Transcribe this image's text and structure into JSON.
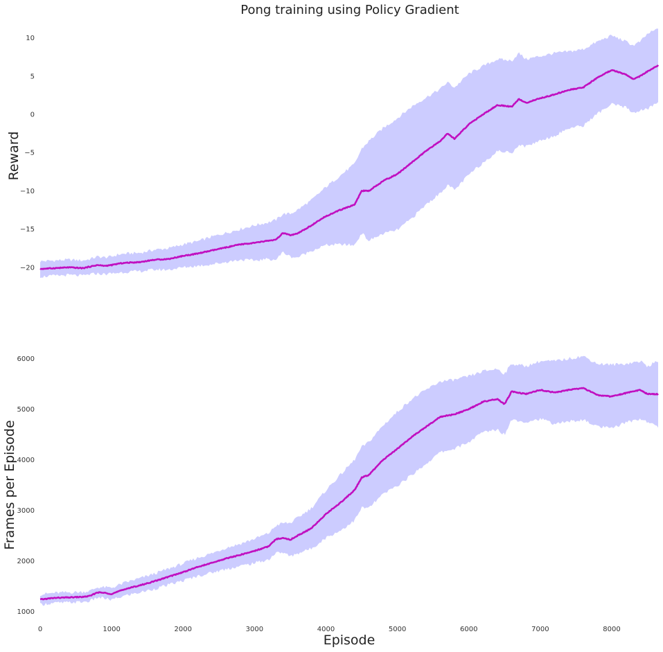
{
  "chart_data": [
    {
      "type": "line",
      "title": "Pong training using Policy Gradient",
      "ylabel": "Reward",
      "xlabel": "",
      "xlim": [
        0,
        8650
      ],
      "ylim": [
        -22,
        11.5
      ],
      "xticks": [
        0,
        1000,
        2000,
        3000,
        4000,
        5000,
        6000,
        7000,
        8000
      ],
      "yticks": [
        -20,
        -15,
        -10,
        -5,
        0,
        5,
        10
      ],
      "grid": false,
      "colors": {
        "mean": "#c010c0",
        "band": "#ccccff"
      },
      "series": [
        {
          "x": [
            0,
            200,
            400,
            600,
            700,
            800,
            900,
            1000,
            1100,
            1200,
            1400,
            1600,
            1800,
            2000,
            2200,
            2400,
            2600,
            2800,
            3000,
            3200,
            3300,
            3400,
            3500,
            3600,
            3800,
            4000,
            4200,
            4400,
            4500,
            4600,
            4800,
            5000,
            5200,
            5400,
            5600,
            5700,
            5800,
            6000,
            6200,
            6400,
            6600,
            6700,
            6800,
            7000,
            7200,
            7400,
            7600,
            7800,
            8000,
            8200,
            8300,
            8400,
            8500,
            8650
          ],
          "y": [
            -20.2,
            -20.1,
            -20.0,
            -20.1,
            -19.9,
            -19.7,
            -19.8,
            -19.7,
            -19.5,
            -19.4,
            -19.3,
            -19.0,
            -18.9,
            -18.5,
            -18.2,
            -17.8,
            -17.4,
            -17.0,
            -16.8,
            -16.5,
            -16.4,
            -15.5,
            -15.8,
            -15.6,
            -14.5,
            -13.3,
            -12.5,
            -11.8,
            -10.0,
            -10.0,
            -8.7,
            -7.8,
            -6.3,
            -4.8,
            -3.5,
            -2.5,
            -3.2,
            -1.3,
            0.0,
            1.2,
            1.0,
            2.0,
            1.5,
            2.1,
            2.6,
            3.2,
            3.5,
            4.8,
            5.8,
            5.2,
            4.6,
            5.0,
            5.6,
            6.4
          ],
          "upper": [
            -19.2,
            -19.1,
            -19.0,
            -19.1,
            -18.9,
            -18.6,
            -18.7,
            -18.6,
            -18.3,
            -18.2,
            -18.1,
            -17.7,
            -17.5,
            -17.0,
            -16.6,
            -16.0,
            -15.5,
            -15.0,
            -14.5,
            -14.1,
            -13.8,
            -13.0,
            -13.0,
            -12.5,
            -11.2,
            -9.5,
            -8.0,
            -6.5,
            -4.5,
            -3.5,
            -1.8,
            -0.5,
            1.0,
            2.2,
            3.3,
            4.2,
            3.5,
            5.3,
            6.3,
            7.2,
            7.0,
            8.0,
            7.2,
            7.6,
            8.0,
            8.2,
            8.5,
            9.5,
            10.3,
            9.5,
            9.0,
            9.5,
            10.5,
            11.2
          ],
          "lower": [
            -21.2,
            -21.1,
            -21.0,
            -21.1,
            -20.9,
            -20.8,
            -20.9,
            -20.8,
            -20.7,
            -20.6,
            -20.5,
            -20.3,
            -20.3,
            -20.0,
            -19.8,
            -19.6,
            -19.3,
            -19.0,
            -19.1,
            -18.9,
            -19.0,
            -18.0,
            -18.6,
            -18.7,
            -17.8,
            -17.1,
            -17.0,
            -17.1,
            -15.5,
            -16.5,
            -15.6,
            -15.1,
            -13.6,
            -11.8,
            -10.3,
            -9.2,
            -9.9,
            -7.9,
            -6.3,
            -4.8,
            -5.0,
            -4.0,
            -4.2,
            -3.4,
            -2.8,
            -1.8,
            -1.5,
            0.1,
            1.3,
            0.9,
            0.2,
            0.5,
            0.7,
            1.6
          ]
        }
      ]
    },
    {
      "type": "line",
      "title": "",
      "ylabel": "Frames per Episode",
      "xlabel": "Episode",
      "xlim": [
        0,
        8650
      ],
      "ylim": [
        900,
        6200
      ],
      "xticks": [
        0,
        1000,
        2000,
        3000,
        4000,
        5000,
        6000,
        7000,
        8000
      ],
      "yticks": [
        1000,
        2000,
        3000,
        4000,
        5000,
        6000
      ],
      "grid": false,
      "colors": {
        "mean": "#c010c0",
        "band": "#ccccff"
      },
      "series": [
        {
          "x": [
            0,
            200,
            400,
            600,
            700,
            800,
            900,
            1000,
            1200,
            1400,
            1600,
            1800,
            2000,
            2200,
            2400,
            2600,
            2800,
            3000,
            3200,
            3300,
            3400,
            3500,
            3600,
            3800,
            4000,
            4200,
            4400,
            4500,
            4600,
            4800,
            5000,
            5200,
            5400,
            5600,
            5800,
            6000,
            6200,
            6400,
            6500,
            6600,
            6800,
            7000,
            7200,
            7400,
            7600,
            7800,
            8000,
            8200,
            8400,
            8500,
            8650
          ],
          "y": [
            1240,
            1270,
            1280,
            1290,
            1310,
            1380,
            1370,
            1350,
            1450,
            1520,
            1600,
            1690,
            1780,
            1880,
            1960,
            2050,
            2120,
            2200,
            2290,
            2430,
            2460,
            2420,
            2500,
            2650,
            2930,
            3150,
            3400,
            3650,
            3700,
            4000,
            4220,
            4450,
            4650,
            4850,
            4900,
            5000,
            5150,
            5200,
            5100,
            5350,
            5300,
            5380,
            5330,
            5380,
            5420,
            5280,
            5250,
            5320,
            5380,
            5300,
            5300
          ],
          "upper": [
            1340,
            1370,
            1380,
            1390,
            1410,
            1480,
            1480,
            1470,
            1580,
            1660,
            1750,
            1850,
            1950,
            2060,
            2150,
            2260,
            2340,
            2440,
            2550,
            2700,
            2750,
            2750,
            2850,
            3050,
            3400,
            3700,
            4000,
            4250,
            4350,
            4680,
            4950,
            5200,
            5380,
            5550,
            5580,
            5650,
            5750,
            5800,
            5700,
            5900,
            5850,
            5950,
            5950,
            6000,
            6050,
            5900,
            5880,
            5900,
            5950,
            5850,
            5950
          ],
          "lower": [
            1140,
            1170,
            1180,
            1190,
            1210,
            1280,
            1260,
            1230,
            1320,
            1380,
            1450,
            1530,
            1610,
            1700,
            1770,
            1840,
            1900,
            1960,
            2030,
            2160,
            2170,
            2090,
            2150,
            2250,
            2460,
            2600,
            2800,
            3050,
            3050,
            3320,
            3490,
            3700,
            3920,
            4150,
            4220,
            4350,
            4550,
            4600,
            4500,
            4800,
            4750,
            4810,
            4710,
            4760,
            4790,
            4660,
            4620,
            4740,
            4810,
            4750,
            4650
          ]
        }
      ]
    }
  ]
}
